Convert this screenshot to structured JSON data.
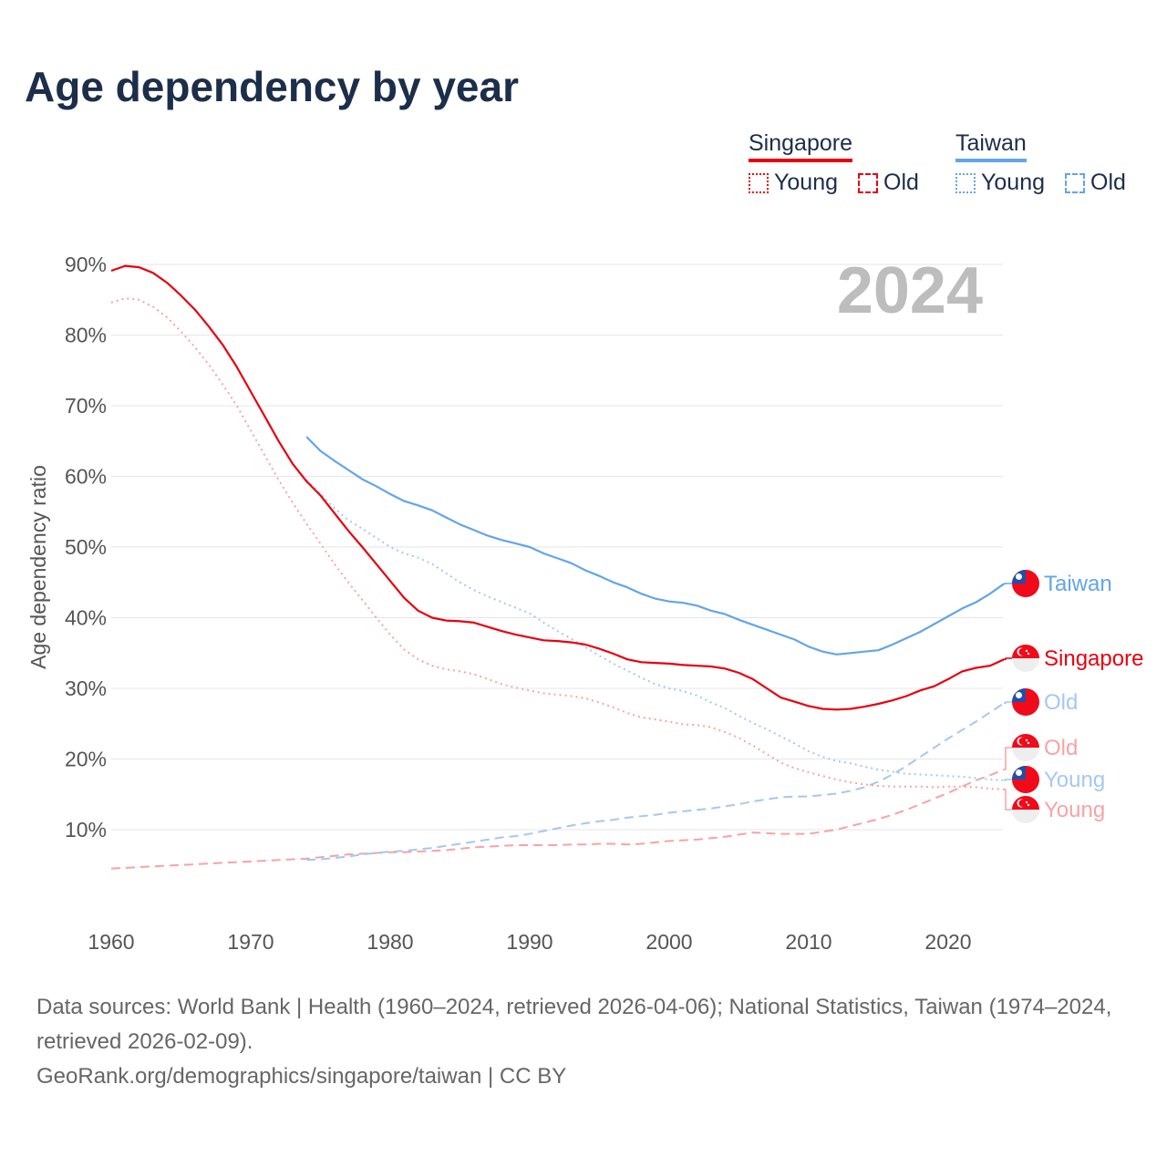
{
  "title": "Age dependency by year",
  "legend": {
    "groups": [
      {
        "name": "Singapore",
        "color": "#e8000e",
        "young_label": "Young",
        "old_label": "Old"
      },
      {
        "name": "Taiwan",
        "color": "#62a5ea",
        "young_label": "Young",
        "old_label": "Old"
      }
    ]
  },
  "footer": {
    "sources": "Data sources: World Bank | Health (1960–2024, retrieved 2026-04-06); National Statistics, Taiwan (1974–2024, retrieved 2026-02-09).",
    "credit": "GeoRank.org/demographics/singapore/taiwan | CC BY"
  },
  "chart_data": {
    "type": "line",
    "title": "Age dependency by year",
    "ylabel": "Age dependency ratio",
    "xlabel": "",
    "year_watermark": "2024",
    "xlim": [
      1960,
      2024
    ],
    "ylim": [
      0,
      90
    ],
    "x_ticks": [
      1960,
      1970,
      1980,
      1990,
      2000,
      2010,
      2020
    ],
    "x_tick_labels": [
      "1960",
      "1970",
      "1980",
      "1990",
      "2000",
      "2010",
      "2020"
    ],
    "y_ticks": [
      10,
      20,
      30,
      40,
      50,
      60,
      70,
      80,
      90
    ],
    "y_tick_labels": [
      "10%",
      "20%",
      "30%",
      "40%",
      "50%",
      "60%",
      "70%",
      "80%",
      "90%"
    ],
    "grid": true,
    "legend_position": "top-right",
    "series": [
      {
        "name": "Taiwan",
        "end_label": "Taiwan",
        "country": "taiwan",
        "style": "solid",
        "color": "#62a5ea",
        "x_start": 1974,
        "values": [
          65.6,
          63.6,
          62.2,
          60.9,
          59.6,
          58.6,
          57.5,
          56.5,
          55.9,
          55.2,
          54.2,
          53.2,
          52.4,
          51.6,
          51.0,
          50.5,
          50.0,
          49.1,
          48.4,
          47.7,
          46.7,
          45.9,
          45.0,
          44.3,
          43.4,
          42.7,
          42.3,
          42.1,
          41.7,
          41.0,
          40.5,
          39.7,
          39.0,
          38.3,
          37.6,
          36.9,
          35.9,
          35.2,
          34.8,
          35.0,
          35.2,
          35.4,
          36.2,
          37.1,
          38.0,
          39.1,
          40.2,
          41.3,
          42.2,
          43.4,
          44.8
        ]
      },
      {
        "name": "Singapore",
        "end_label": "Singapore",
        "country": "singapore",
        "style": "solid",
        "color": "#e8000e",
        "x_start": 1960,
        "values": [
          89.1,
          89.8,
          89.6,
          88.8,
          87.4,
          85.6,
          83.6,
          81.2,
          78.6,
          75.5,
          72.0,
          68.5,
          65.0,
          61.8,
          59.3,
          57.3,
          54.8,
          52.3,
          50.0,
          47.6,
          45.2,
          42.8,
          41.0,
          40.0,
          39.6,
          39.5,
          39.3,
          38.7,
          38.1,
          37.6,
          37.2,
          36.8,
          36.7,
          36.5,
          36.2,
          35.6,
          34.9,
          34.1,
          33.7,
          33.6,
          33.5,
          33.3,
          33.2,
          33.1,
          32.8,
          32.2,
          31.3,
          30.0,
          28.7,
          28.1,
          27.5,
          27.1,
          27.0,
          27.1,
          27.4,
          27.8,
          28.3,
          28.9,
          29.7,
          30.3,
          31.3,
          32.4,
          32.9,
          33.2,
          34.1
        ]
      },
      {
        "name": "Taiwan Old",
        "end_label": "Old",
        "country": "taiwan",
        "style": "dashed",
        "color": "#a5c8ef",
        "x_start": 1974,
        "values": [
          5.7,
          5.8,
          6.0,
          6.2,
          6.5,
          6.7,
          6.9,
          7.0,
          7.2,
          7.4,
          7.7,
          8.0,
          8.3,
          8.6,
          8.9,
          9.1,
          9.4,
          9.8,
          10.2,
          10.6,
          10.9,
          11.2,
          11.4,
          11.7,
          11.9,
          12.1,
          12.4,
          12.6,
          12.8,
          13.0,
          13.3,
          13.6,
          14.0,
          14.3,
          14.6,
          14.7,
          14.7,
          14.9,
          15.1,
          15.5,
          16.0,
          16.8,
          17.8,
          19.0,
          20.3,
          21.6,
          22.9,
          24.1,
          25.3,
          26.6,
          27.9
        ]
      },
      {
        "name": "Singapore Old",
        "end_label": "Old",
        "country": "singapore",
        "style": "dashed",
        "color": "#f7a3a6",
        "x_start": 1960,
        "values": [
          4.5,
          4.6,
          4.7,
          4.8,
          4.9,
          5.0,
          5.1,
          5.2,
          5.3,
          5.4,
          5.5,
          5.6,
          5.7,
          5.8,
          5.9,
          6.1,
          6.3,
          6.5,
          6.6,
          6.7,
          6.8,
          6.8,
          6.9,
          7.0,
          7.1,
          7.3,
          7.5,
          7.6,
          7.7,
          7.8,
          7.8,
          7.8,
          7.8,
          7.9,
          7.9,
          8.0,
          8.0,
          7.9,
          8.0,
          8.2,
          8.4,
          8.5,
          8.6,
          8.8,
          9.0,
          9.3,
          9.6,
          9.5,
          9.4,
          9.4,
          9.4,
          9.7,
          10.0,
          10.5,
          11.0,
          11.5,
          12.1,
          12.8,
          13.6,
          14.4,
          15.2,
          16.1,
          17.0,
          17.7,
          18.5
        ]
      },
      {
        "name": "Taiwan Young",
        "end_label": "Young",
        "country": "taiwan",
        "style": "dotted",
        "color": "#a5c8ef",
        "x_start": 1974,
        "values": [
          59.5,
          57.5,
          55.5,
          53.8,
          52.6,
          51.3,
          50.0,
          49.1,
          48.5,
          47.6,
          46.3,
          45.0,
          43.9,
          43.0,
          42.2,
          41.4,
          40.6,
          39.3,
          38.1,
          37.0,
          35.8,
          34.6,
          33.5,
          32.5,
          31.5,
          30.6,
          30.0,
          29.6,
          29.0,
          28.0,
          27.2,
          26.1,
          25.1,
          24.2,
          23.2,
          22.2,
          21.1,
          20.3,
          19.7,
          19.4,
          18.9,
          18.5,
          18.2,
          17.9,
          17.8,
          17.7,
          17.6,
          17.5,
          17.3,
          17.1,
          17.0
        ]
      },
      {
        "name": "Singapore Young",
        "end_label": "Young",
        "country": "singapore",
        "style": "dotted",
        "color": "#f7a3a6",
        "x_start": 1960,
        "values": [
          84.6,
          85.2,
          85.0,
          84.0,
          82.5,
          80.5,
          78.3,
          75.8,
          73.0,
          70.0,
          66.5,
          63.0,
          59.5,
          56.3,
          53.3,
          50.5,
          47.6,
          45.0,
          42.5,
          40.0,
          37.6,
          35.5,
          34.1,
          33.2,
          32.7,
          32.4,
          32.0,
          31.3,
          30.6,
          30.1,
          29.7,
          29.3,
          29.1,
          28.9,
          28.6,
          28.0,
          27.3,
          26.5,
          25.9,
          25.6,
          25.3,
          24.9,
          24.8,
          24.5,
          23.8,
          23.0,
          21.9,
          20.7,
          19.5,
          18.7,
          18.1,
          17.6,
          17.1,
          16.7,
          16.4,
          16.2,
          16.1,
          16.1,
          16.1,
          16.0,
          16.1,
          16.1,
          16.0,
          15.8,
          15.7
        ]
      }
    ]
  }
}
